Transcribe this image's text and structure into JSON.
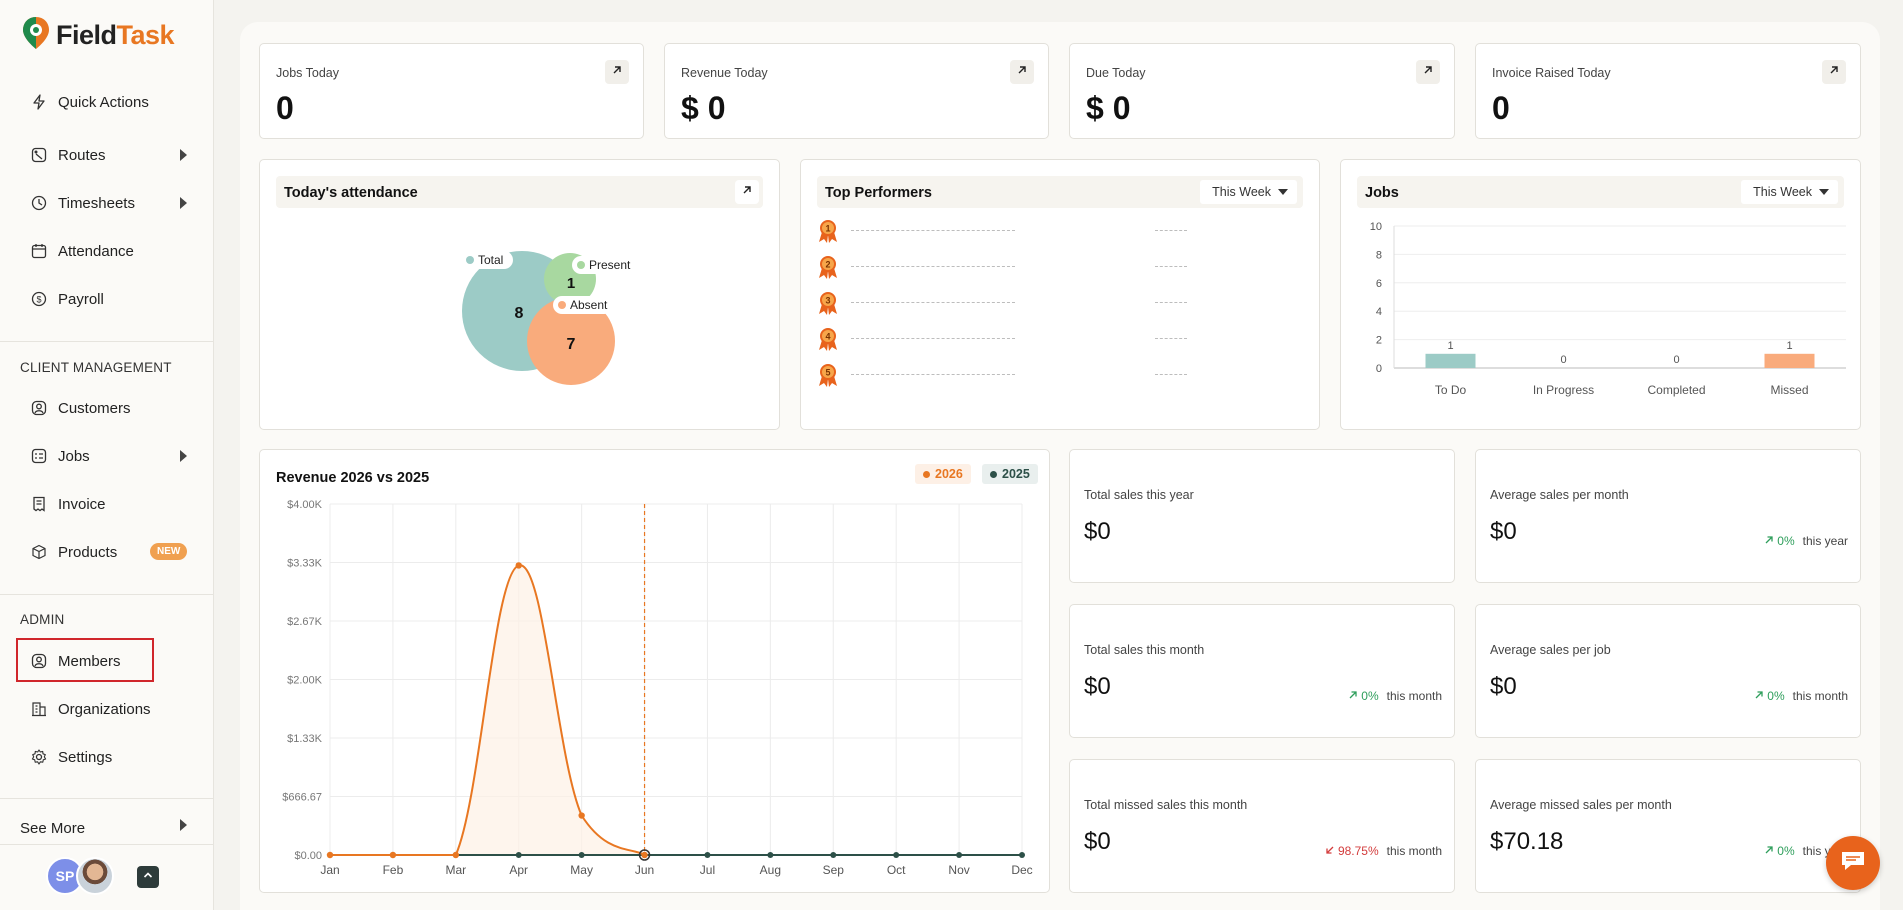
{
  "brand": {
    "name_part1": "Field",
    "name_part2": "Task"
  },
  "sidebar": {
    "items": [
      {
        "label": "Quick Actions",
        "icon": "bolt-icon"
      },
      {
        "label": "Routes",
        "icon": "route-icon",
        "expandable": true
      },
      {
        "label": "Timesheets",
        "icon": "clock-icon",
        "expandable": true
      },
      {
        "label": "Attendance",
        "icon": "calendar-icon"
      },
      {
        "label": "Payroll",
        "icon": "dollar-icon"
      }
    ],
    "client_section": "CLIENT MANAGEMENT",
    "client_items": [
      {
        "label": "Customers",
        "icon": "user-circle-icon"
      },
      {
        "label": "Jobs",
        "icon": "jobs-icon",
        "expandable": true
      },
      {
        "label": "Invoice",
        "icon": "invoice-icon"
      },
      {
        "label": "Products",
        "icon": "box-icon",
        "badge": "NEW"
      }
    ],
    "admin_section": "ADMIN",
    "admin_items": [
      {
        "label": "Members",
        "icon": "user-circle-icon"
      },
      {
        "label": "Organizations",
        "icon": "building-icon"
      },
      {
        "label": "Settings",
        "icon": "gear-icon"
      }
    ],
    "see_more": "See More",
    "user_initials": "SP"
  },
  "stats": [
    {
      "label": "Jobs Today",
      "value": "0"
    },
    {
      "label": "Revenue Today",
      "value": "$ 0"
    },
    {
      "label": "Due Today",
      "value": "$ 0"
    },
    {
      "label": "Invoice Raised Today",
      "value": "0"
    }
  ],
  "attendance": {
    "title": "Today's attendance",
    "total_label": "Total",
    "total_value": "8",
    "present_label": "Present",
    "present_value": "1",
    "absent_label": "Absent",
    "absent_value": "7",
    "colors": {
      "total": "#9ccbc6",
      "present": "#a8d8a0",
      "absent": "#f9ab7c"
    }
  },
  "top_performers": {
    "title": "Top Performers",
    "period": "This Week",
    "ranks": [
      "1",
      "2",
      "3",
      "4",
      "5"
    ]
  },
  "jobs_chart": {
    "title": "Jobs",
    "period": "This Week",
    "chart_data": {
      "type": "bar",
      "categories": [
        "To Do",
        "In Progress",
        "Completed",
        "Missed"
      ],
      "values": [
        1,
        0,
        0,
        1
      ],
      "value_labels": [
        "1",
        "0",
        "0",
        "1"
      ],
      "yticks": [
        "0",
        "2",
        "4",
        "6",
        "8",
        "10"
      ],
      "ylim": [
        0,
        10
      ],
      "colors": [
        "#9ccbc6",
        "#9ccbc6",
        "#9ccbc6",
        "#f9ab7c"
      ]
    }
  },
  "revenue_chart": {
    "title": "Revenue 2026 vs 2025",
    "chart_data": {
      "type": "line",
      "categories": [
        "Jan",
        "Feb",
        "Mar",
        "Apr",
        "May",
        "Jun",
        "Jul",
        "Aug",
        "Sep",
        "Oct",
        "Nov",
        "Dec"
      ],
      "series": [
        {
          "name": "2026",
          "color": "#e87722",
          "values": [
            0,
            0,
            0,
            3300,
            450,
            0,
            null,
            null,
            null,
            null,
            null,
            null
          ]
        },
        {
          "name": "2025",
          "color": "#2d5048",
          "values": [
            0,
            0,
            0,
            0,
            0,
            0,
            0,
            0,
            0,
            0,
            0,
            0
          ]
        }
      ],
      "yticks": [
        "$0.00",
        "$666.67",
        "$1.33K",
        "$2.00K",
        "$2.67K",
        "$3.33K",
        "$4.00K"
      ],
      "ylim": [
        0,
        4000
      ],
      "current_month": "Jun"
    }
  },
  "sales": [
    {
      "label": "Total sales this year",
      "value": "$0",
      "trend": "",
      "period": ""
    },
    {
      "label": "Average sales per month",
      "value": "$0",
      "trend": "0%",
      "direction": "up",
      "period": "this year"
    },
    {
      "label": "Total sales this month",
      "value": "$0",
      "trend": "0%",
      "direction": "up",
      "period": "this month"
    },
    {
      "label": "Average sales per job",
      "value": "$0",
      "trend": "0%",
      "direction": "up",
      "period": "this month"
    },
    {
      "label": "Total missed sales this month",
      "value": "$0",
      "trend": "98.75%",
      "direction": "down",
      "period": "this month"
    },
    {
      "label": "Average missed sales per month",
      "value": "$70.18",
      "trend": "0%",
      "direction": "up",
      "period": "this year"
    }
  ]
}
